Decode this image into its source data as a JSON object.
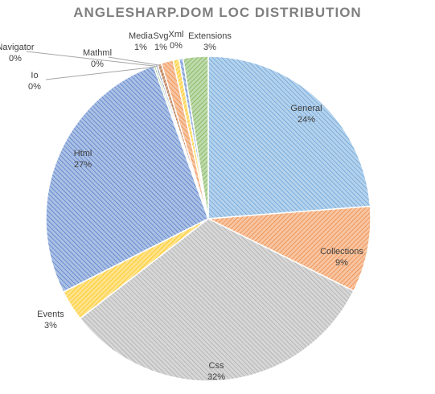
{
  "chart_data": {
    "type": "pie",
    "title": "ANGLESHARP.DOM LOC DISTRIBUTION",
    "slices": [
      {
        "label": "General",
        "value_label": "24%",
        "value": 23.9,
        "color": "#5b9bd5"
      },
      {
        "label": "Collections",
        "value_label": "9%",
        "value": 8.6,
        "color": "#ed7d31"
      },
      {
        "label": "Css",
        "value_label": "32%",
        "value": 32.3,
        "color": "#a5a5a5"
      },
      {
        "label": "Events",
        "value_label": "3%",
        "value": 3.1,
        "color": "#ffc000"
      },
      {
        "label": "Html",
        "value_label": "27%",
        "value": 27.1,
        "color": "#4472c4"
      },
      {
        "label": "Io",
        "value_label": "0%",
        "value": 0.2,
        "color": "#70ad47"
      },
      {
        "label": "Navigator",
        "value_label": "0%",
        "value": 0.2,
        "color": "#264478"
      },
      {
        "label": "Mathml",
        "value_label": "0%",
        "value": 0.4,
        "color": "#9e480e"
      },
      {
        "label": "Media",
        "value_label": "1%",
        "value": 1.2,
        "color": "#ed7d31"
      },
      {
        "label": "Svg",
        "value_label": "1%",
        "value": 0.6,
        "color": "#ffc000"
      },
      {
        "label": "Xml",
        "value_label": "0%",
        "value": 0.4,
        "color": "#4472c4"
      },
      {
        "label": "Extensions",
        "value_label": "3%",
        "value": 2.5,
        "color": "#70ad47"
      }
    ]
  }
}
